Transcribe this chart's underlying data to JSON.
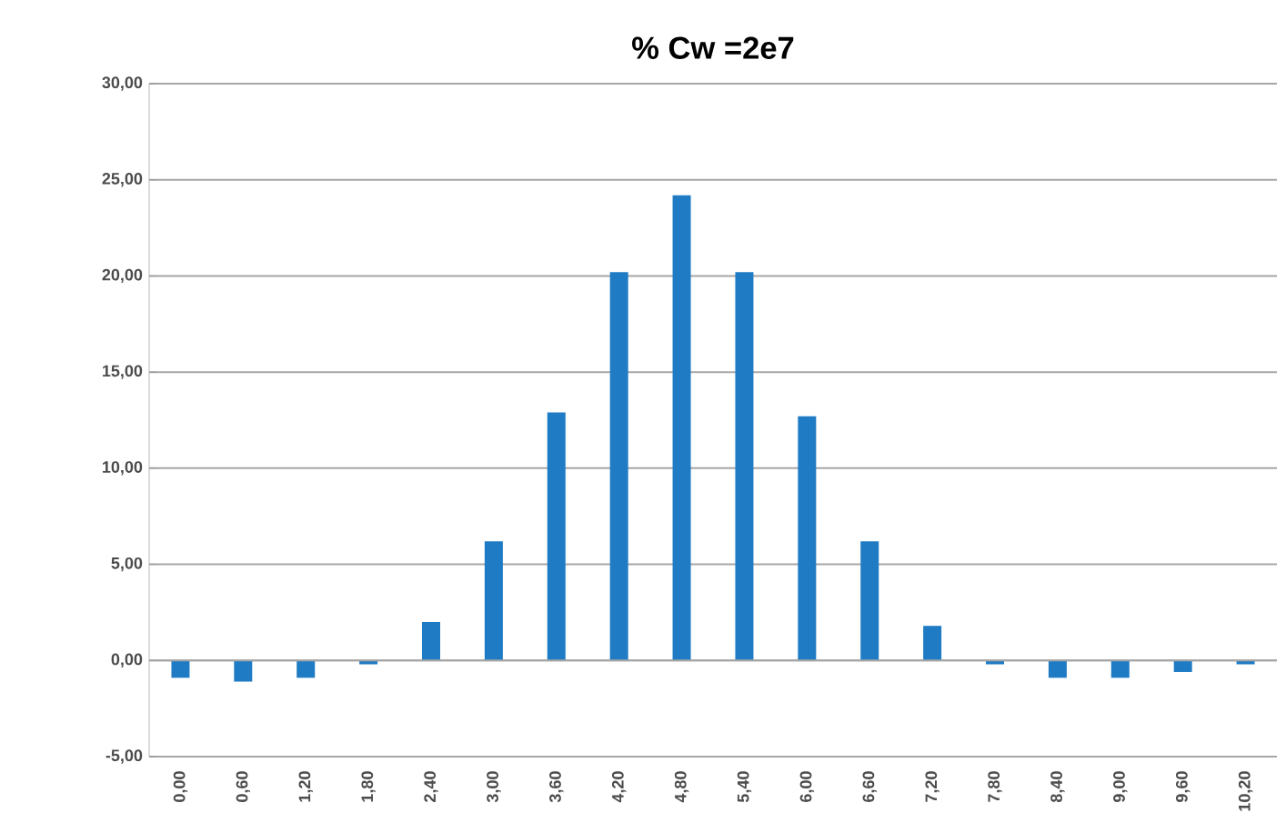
{
  "chart_data": {
    "type": "bar",
    "title": "% Cw =2e7",
    "categories": [
      "0,00",
      "0,60",
      "1,20",
      "1,80",
      "2,40",
      "3,00",
      "3,60",
      "4,20",
      "4,80",
      "5,40",
      "6,00",
      "6,60",
      "7,20",
      "7,80",
      "8,40",
      "9,00",
      "9,60",
      "10,20"
    ],
    "values": [
      -0.9,
      -1.1,
      -0.9,
      -0.2,
      2.0,
      6.2,
      12.9,
      20.2,
      24.2,
      20.2,
      12.7,
      6.2,
      1.8,
      -0.2,
      -0.9,
      -0.9,
      -0.6,
      -0.2
    ],
    "color": "#1f7bc4",
    "ylim": [
      -5,
      30
    ],
    "yticks": [
      {
        "value": -5,
        "label": "-5,00"
      },
      {
        "value": 0,
        "label": "0,00"
      },
      {
        "value": 5,
        "label": "5,00"
      },
      {
        "value": 10,
        "label": "10,00"
      },
      {
        "value": 15,
        "label": "15,00"
      },
      {
        "value": 20,
        "label": "20,00"
      },
      {
        "value": 25,
        "label": "25,00"
      },
      {
        "value": 30,
        "label": "30,00"
      }
    ],
    "grid": "y"
  }
}
